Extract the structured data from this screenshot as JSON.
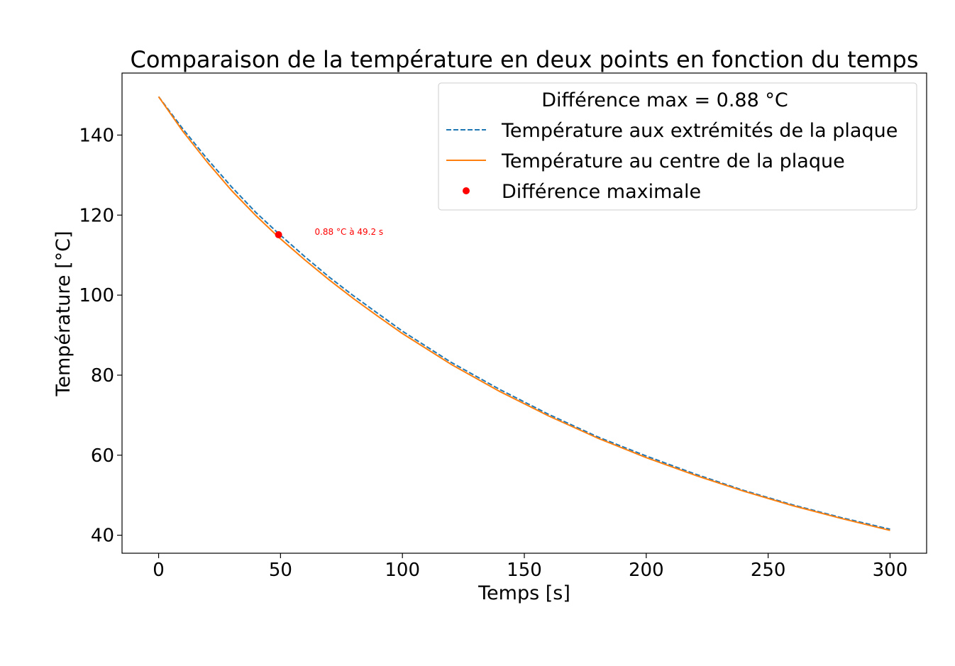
{
  "chart_data": {
    "type": "line",
    "title": "Comparaison de la température en deux points en fonction du temps",
    "xlabel": "Temps [s]",
    "ylabel": "Température [°C]",
    "xlim": [
      -15,
      315
    ],
    "ylim": [
      35.5,
      155.5
    ],
    "xticks": [
      0,
      50,
      100,
      150,
      200,
      250,
      300
    ],
    "yticks": [
      40,
      60,
      80,
      100,
      120,
      140
    ],
    "grid": false,
    "legend": {
      "placement": "top-right",
      "title": "Différence max = 0.88 °C"
    },
    "series": [
      {
        "name": "Température aux extrémités de la plaque",
        "style": "dashed",
        "color": "#1f77b4",
        "x": [
          0,
          10,
          20,
          30,
          40,
          49.2,
          60,
          70,
          80,
          90,
          100,
          120,
          140,
          160,
          180,
          200,
          220,
          240,
          260,
          280,
          300
        ],
        "y": [
          149.6,
          141.5,
          134.0,
          127.0,
          120.6,
          115.4,
          109.6,
          104.5,
          99.8,
          95.4,
          91.0,
          83.2,
          76.4,
          70.2,
          64.6,
          59.8,
          55.3,
          51.2,
          47.6,
          44.4,
          41.5
        ]
      },
      {
        "name": "Température au centre de la plaque",
        "style": "solid",
        "color": "#ff7f0e",
        "x": [
          0,
          10,
          20,
          30,
          40,
          49.2,
          60,
          70,
          80,
          90,
          100,
          120,
          140,
          160,
          180,
          200,
          220,
          240,
          260,
          280,
          300
        ],
        "y": [
          149.6,
          140.9,
          133.2,
          126.1,
          119.8,
          114.5,
          108.8,
          103.8,
          99.1,
          94.7,
          90.4,
          82.7,
          75.9,
          69.8,
          64.3,
          59.4,
          55.0,
          51.0,
          47.4,
          44.2,
          41.2
        ]
      },
      {
        "name": "Différence maximale",
        "style": "marker",
        "color": "#ff0000",
        "x": [
          49.2
        ],
        "y": [
          115.1
        ]
      }
    ],
    "annotations": [
      {
        "text": "0.88 °C à 49.2 s",
        "x": 64,
        "y": 115.8,
        "color": "#ff0000"
      }
    ]
  }
}
